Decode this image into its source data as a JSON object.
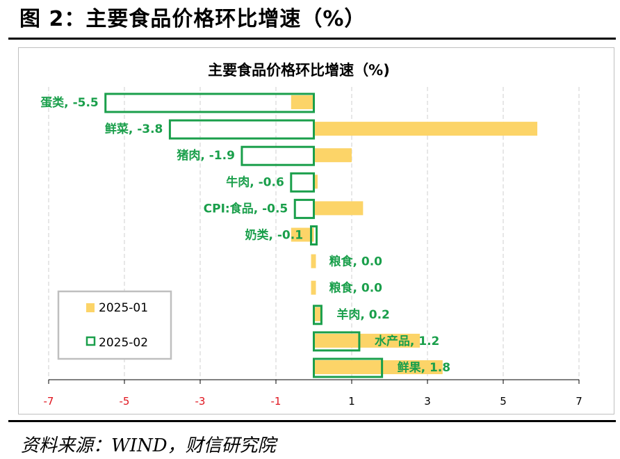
{
  "figure_title": "图 2：主要食品价格环比增速（%）",
  "source": "资料来源：WIND，财信研究院",
  "colors": {
    "series_2025_01": "#fcd468",
    "series_2025_02": "#1a9f4b",
    "label_text": "#1a9f4b",
    "negative_tick": "#e0141e",
    "grid": "#cfcfcf"
  },
  "chart_data": {
    "type": "bar",
    "orientation": "horizontal",
    "title": "主要食品价格环比增速（%)",
    "categories": [
      "蛋类",
      "鲜菜",
      "猪肉",
      "牛肉",
      "CPI:食品",
      "奶类",
      "粮食",
      "粮食",
      "羊肉",
      "水产品",
      "鲜果"
    ],
    "data_labels": [
      "蛋类, -5.5",
      "鲜菜, -3.8",
      "猪肉, -1.9",
      "牛肉, -0.6",
      "CPI:食品, -0.5",
      "奶类, -0.1",
      "粮食, 0.0",
      "粮食, 0.0",
      "羊肉, 0.2",
      "水产品, 1.2",
      "鲜果, 1.8"
    ],
    "series": [
      {
        "name": "2025-01",
        "style": "filled",
        "values": [
          -0.6,
          5.9,
          1.0,
          0.1,
          1.3,
          -0.6,
          0.0,
          0.0,
          0.2,
          2.8,
          3.4
        ]
      },
      {
        "name": "2025-02",
        "style": "outline",
        "values": [
          -5.5,
          -3.8,
          -1.9,
          -0.6,
          -0.5,
          -0.1,
          0.0,
          0.0,
          0.2,
          1.2,
          1.8
        ]
      }
    ],
    "xlim": [
      -7,
      7
    ],
    "xticks": [
      -7,
      -5,
      -3,
      -1,
      1,
      3,
      5,
      7
    ],
    "xtick_labels": [
      "-7",
      "-5",
      "-3",
      "-1",
      "1",
      "3",
      "5",
      "7"
    ],
    "grid": "vertical",
    "legend": {
      "position": "bottom-left",
      "entries": [
        "2025-01",
        "2025-02"
      ]
    }
  }
}
